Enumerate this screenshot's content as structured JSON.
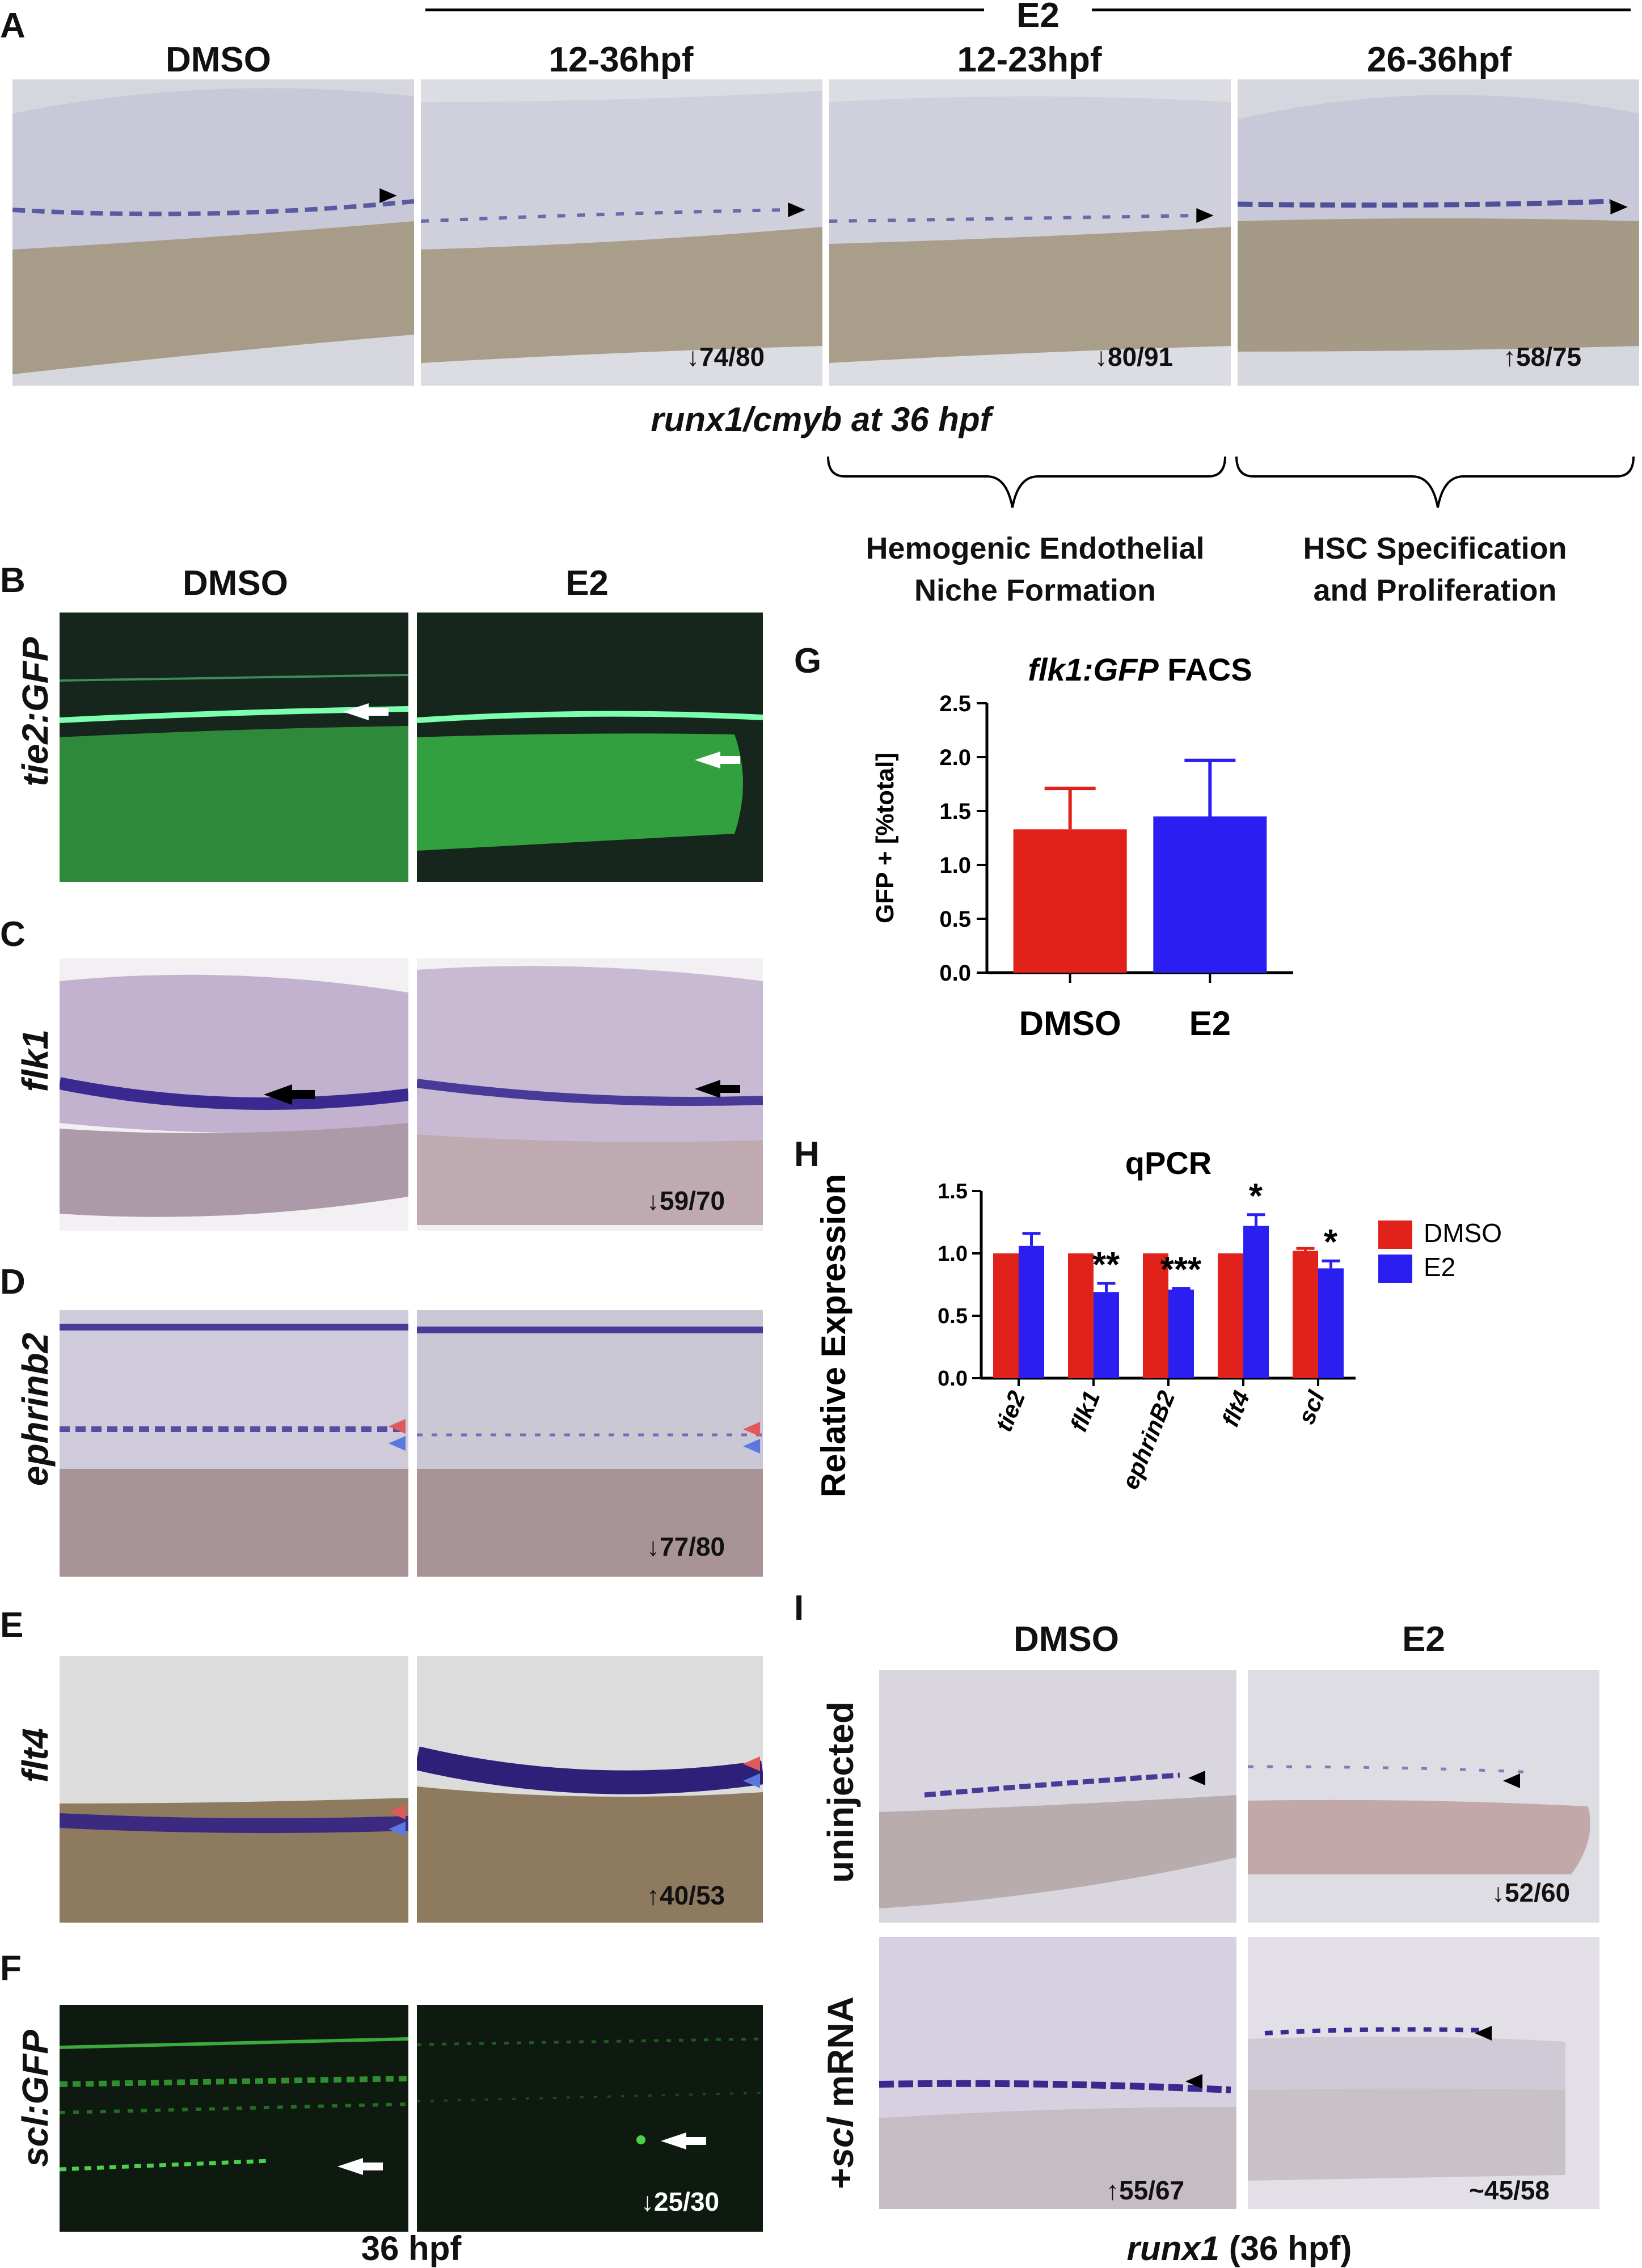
{
  "panel_letters": [
    "A",
    "B",
    "C",
    "D",
    "E",
    "F",
    "G",
    "H",
    "I"
  ],
  "panel_a": {
    "group_label": "E2",
    "columns": [
      "DMSO",
      "12-36hpf",
      "12-23hpf",
      "26-36hpf"
    ],
    "counts": [
      "74/80",
      "80/91",
      "58/75"
    ],
    "caption_gene": "runx1/cmyb",
    "caption_rest": " at 36 hpf",
    "bracket_labels": [
      {
        "line1": "Hemogenic Endothelial",
        "line2": "Niche Formation"
      },
      {
        "line1": "HSC Specification",
        "line2": "and Proliferation"
      }
    ]
  },
  "panel_bf": {
    "columns": [
      "DMSO",
      "E2"
    ],
    "rows": [
      "tie2:GFP",
      "flk1",
      "ephrinb2",
      "flt4",
      "scl:GFP"
    ],
    "counts": [
      "59/70",
      "77/80",
      "40/53",
      "25/30"
    ],
    "footer": "36 hpf"
  },
  "panel_i": {
    "columns": [
      "DMSO",
      "E2"
    ],
    "row_uninjected": "uninjected",
    "row_scl_prefix": "+",
    "row_scl_gene": "scl",
    "row_scl_suffix": " mRNA",
    "counts": [
      "52/60",
      "55/67",
      "~45/58"
    ],
    "footer_gene": "runx1",
    "footer_rest": " (36 hpf)"
  },
  "colors": {
    "dmso": "#e0221b",
    "e2": "#2a1ff0"
  },
  "chart_data": [
    {
      "type": "bar",
      "title_gene": "flk1:GFP",
      "title_rest": " FACS",
      "categories": [
        "DMSO",
        "E2"
      ],
      "values": [
        1.33,
        1.45
      ],
      "errors": [
        0.38,
        0.52
      ],
      "ylabel": "GFP + [%total]",
      "ylim": [
        0,
        2.5
      ],
      "yticks": [
        "0.0",
        "0.5",
        "1.0",
        "1.5",
        "2.0",
        "2.5"
      ],
      "colors": [
        "#e0221b",
        "#2a1ff0"
      ]
    },
    {
      "type": "bar",
      "title": "qPCR",
      "ylabel": "Relative Expression",
      "ylim": [
        0,
        1.5
      ],
      "yticks": [
        "0.0",
        "0.5",
        "1.0",
        "1.5"
      ],
      "categories": [
        "tie2",
        "flk1",
        "ephrinB2",
        "flt4",
        "scl"
      ],
      "series": [
        {
          "name": "DMSO",
          "values": [
            1.0,
            1.0,
            1.0,
            1.0,
            1.02
          ],
          "errors": [
            0,
            0,
            0,
            0,
            0.02
          ]
        },
        {
          "name": "E2",
          "values": [
            1.06,
            0.69,
            0.71,
            1.22,
            0.88
          ],
          "errors": [
            0.1,
            0.07,
            0.01,
            0.09,
            0.06
          ]
        }
      ],
      "significance": [
        "",
        "**",
        "***",
        "*",
        "*"
      ],
      "legend": "right"
    }
  ]
}
